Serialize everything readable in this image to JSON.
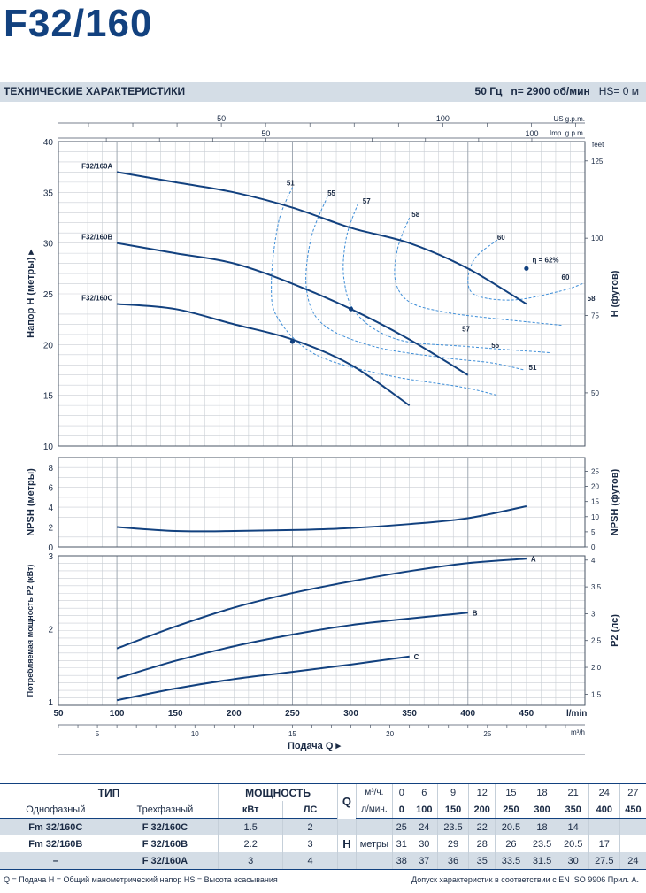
{
  "header": {
    "title": "F32/160",
    "band_left": "ТЕХНИЧЕСКИЕ ХАРАКТЕРИСТИКИ",
    "freq": "50 Гц",
    "speed_label": "n= 2900",
    "speed_unit": "об/мин",
    "hs": "HS= 0 м"
  },
  "chart_data": [
    {
      "name": "head",
      "type": "line",
      "xlim": [
        50,
        500
      ],
      "ylim": [
        10,
        40
      ],
      "y_ticks": [
        10,
        15,
        20,
        25,
        30,
        35,
        40
      ],
      "ylabel": "Напор H (метры)",
      "y2label": "H (футов)",
      "y2_ticks": [
        {
          "label": "50",
          "value": 15.24
        },
        {
          "label": "75",
          "value": 22.86
        },
        {
          "label": "100",
          "value": 30.48
        },
        {
          "label": "125",
          "value": 38.1
        }
      ],
      "y2_unit": "feet",
      "top_axes": [
        {
          "unit": "US g.p.m.",
          "ticks": [
            {
              "label": "50",
              "value": 189.3
            },
            {
              "label": "100",
              "value": 378.5
            }
          ]
        },
        {
          "unit": "Imp. g.p.m.",
          "ticks": [
            {
              "label": "50",
              "value": 227.3
            },
            {
              "label": "100",
              "value": 454.6
            }
          ]
        }
      ],
      "series": [
        {
          "name": "F32/160A",
          "x": [
            100,
            150,
            200,
            250,
            300,
            350,
            400,
            450
          ],
          "y": [
            37,
            36,
            35,
            33.5,
            31.5,
            30,
            27.5,
            24
          ]
        },
        {
          "name": "F32/160B",
          "x": [
            100,
            150,
            200,
            250,
            300,
            350,
            400
          ],
          "y": [
            30,
            29,
            28,
            26,
            23.5,
            20.5,
            17
          ]
        },
        {
          "name": "F32/160C",
          "x": [
            100,
            150,
            200,
            250,
            300,
            350
          ],
          "y": [
            24,
            23.5,
            22,
            20.5,
            18,
            14
          ]
        }
      ],
      "efficiency_labels": [
        {
          "text": "51",
          "x": 245,
          "y": 35.7
        },
        {
          "text": "55",
          "x": 280,
          "y": 34.7
        },
        {
          "text": "57",
          "x": 310,
          "y": 33.9
        },
        {
          "text": "58",
          "x": 352,
          "y": 32.6
        },
        {
          "text": "60",
          "x": 425,
          "y": 30.3
        },
        {
          "text": "η = 62%",
          "x": 455,
          "y": 28.1
        },
        {
          "text": "60",
          "x": 480,
          "y": 26.4
        },
        {
          "text": "58",
          "x": 502,
          "y": 24.3
        },
        {
          "text": "57",
          "x": 395,
          "y": 21.3
        },
        {
          "text": "55",
          "x": 420,
          "y": 19.7
        },
        {
          "text": "51",
          "x": 452,
          "y": 17.5
        }
      ],
      "bep_points": [
        {
          "x": 450,
          "y": 27.5
        },
        {
          "x": 300,
          "y": 23.5
        },
        {
          "x": 250,
          "y": 20.3
        }
      ]
    },
    {
      "name": "npsh",
      "type": "line",
      "xlim": [
        50,
        500
      ],
      "ylim": [
        0,
        9
      ],
      "y_ticks": [
        0,
        2,
        4,
        6,
        8
      ],
      "ylabel": "NPSH (метры)",
      "y2label": "NPSH (футов)",
      "y2_ticks": [
        {
          "label": "0",
          "value": 0
        },
        {
          "label": "5",
          "value": 1.524
        },
        {
          "label": "10",
          "value": 3.048
        },
        {
          "label": "15",
          "value": 4.572
        },
        {
          "label": "20",
          "value": 6.096
        },
        {
          "label": "25",
          "value": 7.62
        }
      ],
      "series": [
        {
          "name": "NPSH",
          "x": [
            100,
            150,
            200,
            250,
            300,
            350,
            400,
            450
          ],
          "y": [
            2.0,
            1.6,
            1.6,
            1.7,
            1.9,
            2.3,
            2.9,
            4.1
          ]
        }
      ]
    },
    {
      "name": "power",
      "type": "line",
      "xlim": [
        50,
        500
      ],
      "ylim": [
        0.95,
        3.0
      ],
      "y_ticks": [
        1,
        2,
        3
      ],
      "ylabel": "Потребляемая мощность P2 (кВт)",
      "y2label": "P2 (лс)",
      "y2_ticks": [
        {
          "label": "1.5",
          "value": 1.103
        },
        {
          "label": "2.0",
          "value": 1.471
        },
        {
          "label": "2.5",
          "value": 1.839
        },
        {
          "label": "3",
          "value": 2.206
        },
        {
          "label": "3.5",
          "value": 2.574
        },
        {
          "label": "4",
          "value": 2.942
        }
      ],
      "x_ticks": [
        50,
        100,
        150,
        200,
        250,
        300,
        350,
        400,
        450
      ],
      "xunit": "l/min",
      "x2_ticks": [
        {
          "label": "5",
          "value": 83.3
        },
        {
          "label": "10",
          "value": 166.7
        },
        {
          "label": "15",
          "value": 250
        },
        {
          "label": "20",
          "value": 333.3
        },
        {
          "label": "25",
          "value": 416.7
        }
      ],
      "x2unit": "m³/h",
      "xlabel": "Подача Q",
      "series": [
        {
          "name": "A",
          "x": [
            100,
            150,
            200,
            250,
            300,
            350,
            400,
            450
          ],
          "y": [
            1.73,
            2.03,
            2.29,
            2.49,
            2.65,
            2.79,
            2.9,
            2.96
          ]
        },
        {
          "name": "B",
          "x": [
            100,
            150,
            200,
            250,
            300,
            350,
            400
          ],
          "y": [
            1.32,
            1.56,
            1.76,
            1.92,
            2.05,
            2.14,
            2.22
          ]
        },
        {
          "name": "C",
          "x": [
            100,
            150,
            200,
            250,
            300,
            350
          ],
          "y": [
            1.02,
            1.18,
            1.31,
            1.41,
            1.51,
            1.62
          ]
        }
      ]
    }
  ],
  "table": {
    "head_type": "ТИП",
    "head_power": "МОЩНОСТЬ",
    "q_label": "Q",
    "q_unit1": "м³/ч.",
    "q_unit2": "л/мин.",
    "col_single": "Однофазный",
    "col_three": "Трехфазный",
    "col_kw": "кВт",
    "col_hp": "ЛС",
    "h_label": "H",
    "h_unit": "метры",
    "q_m3h": [
      "0",
      "6",
      "9",
      "12",
      "15",
      "18",
      "21",
      "24",
      "27"
    ],
    "q_lmin": [
      "0",
      "100",
      "150",
      "200",
      "250",
      "300",
      "350",
      "400",
      "450"
    ],
    "rows": [
      {
        "single": "Fm 32/160C",
        "three": "F 32/160C",
        "kw": "1.5",
        "hp": "2",
        "h": [
          "25",
          "24",
          "23.5",
          "22",
          "20.5",
          "18",
          "14",
          "",
          ""
        ]
      },
      {
        "single": "Fm 32/160B",
        "three": "F 32/160B",
        "kw": "2.2",
        "hp": "3",
        "h": [
          "31",
          "30",
          "29",
          "28",
          "26",
          "23.5",
          "20.5",
          "17",
          ""
        ]
      },
      {
        "single": "–",
        "three": "F 32/160A",
        "kw": "3",
        "hp": "4",
        "h": [
          "38",
          "37",
          "36",
          "35",
          "33.5",
          "31.5",
          "30",
          "27.5",
          "24"
        ]
      }
    ]
  },
  "footer": {
    "left": "Q = Подача   H = Общий манометрический напор   HS = Высота всасывания",
    "right": "Допуск характеристик в соответствии с EN ISO 9906 Прил. A."
  },
  "colors": {
    "curve": "#12417f",
    "efficiency": "#3e8ed8",
    "grid": "#c9ced4",
    "band": "#d4dde6"
  }
}
